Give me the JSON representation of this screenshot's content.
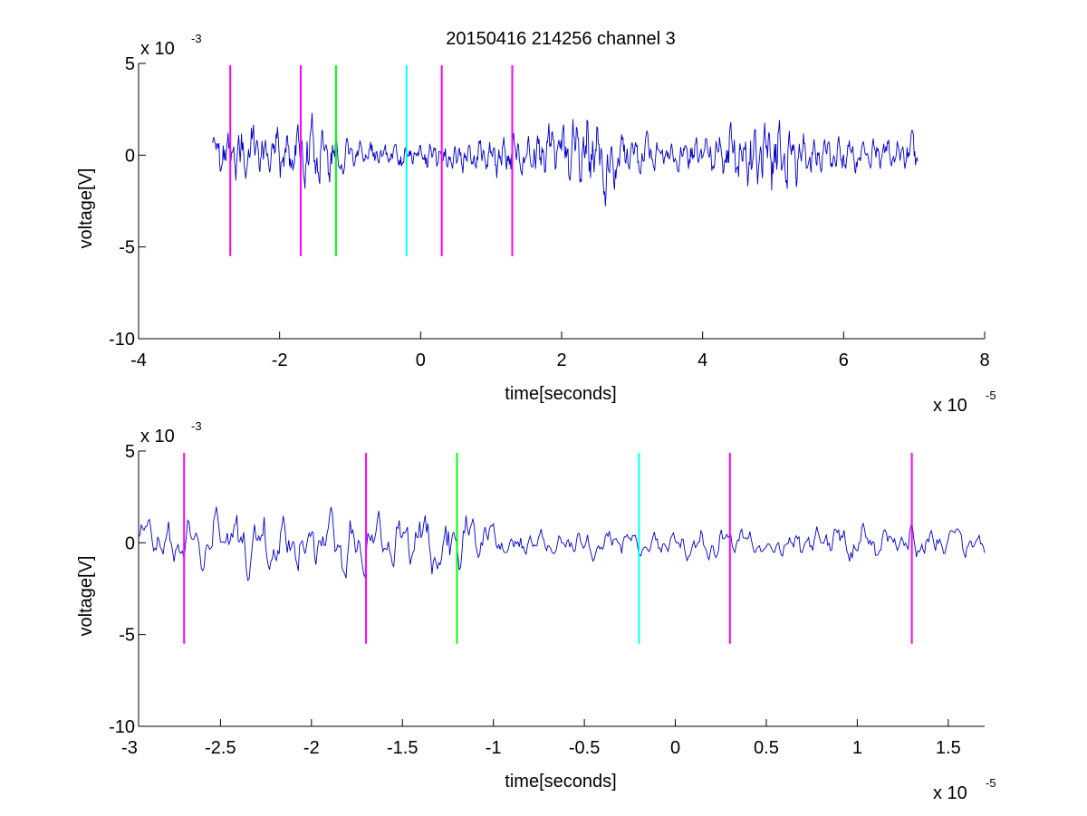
{
  "figure": {
    "title": "20150416 214256 channel 3"
  },
  "chart_data": [
    {
      "type": "line",
      "title": "20150416 214256 channel 3",
      "xlabel": "time[seconds]",
      "ylabel": "voltage[V]",
      "x_exponent_label": "x 10",
      "x_exponent_power": "-5",
      "y_exponent_label": "x 10",
      "y_exponent_power": "-3",
      "xlim": [
        -4,
        8
      ],
      "ylim": [
        -10,
        5
      ],
      "x_ticks": [
        -4,
        -2,
        0,
        2,
        4,
        6,
        8
      ],
      "x_tick_labels": [
        "-4",
        "-2",
        "0",
        "2",
        "4",
        "6",
        "8"
      ],
      "y_ticks": [
        -10,
        -5,
        0,
        5
      ],
      "y_tick_labels": [
        "-10",
        "-5",
        "0",
        "5"
      ],
      "grid": false,
      "series": [
        {
          "color": "#0000cc",
          "x_range": [
            -2.95,
            7.05
          ],
          "envelope": [
            {
              "x": -2.9,
              "amp": 1.5
            },
            {
              "x": -2.5,
              "amp": 2.2
            },
            {
              "x": -2.0,
              "amp": 1.8
            },
            {
              "x": -1.5,
              "amp": 2.4
            },
            {
              "x": -1.0,
              "amp": 1.0
            },
            {
              "x": -0.5,
              "amp": 0.9
            },
            {
              "x": 0.0,
              "amp": 1.0
            },
            {
              "x": 0.5,
              "amp": 1.2
            },
            {
              "x": 1.0,
              "amp": 1.3
            },
            {
              "x": 1.5,
              "amp": 1.6
            },
            {
              "x": 2.0,
              "amp": 2.3
            },
            {
              "x": 2.5,
              "amp": 3.0
            },
            {
              "x": 3.0,
              "amp": 1.4
            },
            {
              "x": 3.5,
              "amp": 1.0
            },
            {
              "x": 4.0,
              "amp": 1.4
            },
            {
              "x": 4.5,
              "amp": 2.0
            },
            {
              "x": 5.0,
              "amp": 3.0
            },
            {
              "x": 5.5,
              "amp": 1.6
            },
            {
              "x": 6.0,
              "amp": 1.2
            },
            {
              "x": 6.5,
              "amp": 1.0
            },
            {
              "x": 7.0,
              "amp": 1.5
            }
          ]
        }
      ],
      "markers": [
        {
          "x": -2.7,
          "y_min": -5.5,
          "y_max": 4.9,
          "color": "#ff00ff"
        },
        {
          "x": -1.7,
          "y_min": -5.5,
          "y_max": 4.9,
          "color": "#ff00ff"
        },
        {
          "x": -1.2,
          "y_min": -5.5,
          "y_max": 4.9,
          "color": "#00ff00"
        },
        {
          "x": -0.2,
          "y_min": -5.5,
          "y_max": 4.9,
          "color": "#00ffff"
        },
        {
          "x": 0.3,
          "y_min": -5.5,
          "y_max": 4.9,
          "color": "#ff00ff"
        },
        {
          "x": 1.3,
          "y_min": -5.5,
          "y_max": 4.9,
          "color": "#ff00ff"
        }
      ]
    },
    {
      "type": "line",
      "xlabel": "time[seconds]",
      "ylabel": "voltage[V]",
      "x_exponent_label": "x 10",
      "x_exponent_power": "-5",
      "y_exponent_label": "x 10",
      "y_exponent_power": "-3",
      "xlim": [
        -2.95,
        1.7
      ],
      "ylim": [
        -10,
        5
      ],
      "x_ticks": [
        -3,
        -2.5,
        -2,
        -1.5,
        -1,
        -0.5,
        0,
        0.5,
        1,
        1.5
      ],
      "x_tick_labels": [
        "-3",
        "-2.5",
        "-2",
        "-1.5",
        "-1",
        "-0.5",
        "0",
        "0.5",
        "1",
        "1.5"
      ],
      "y_ticks": [
        -10,
        -5,
        0,
        5
      ],
      "y_tick_labels": [
        "-10",
        "-5",
        "0",
        "5"
      ],
      "grid": false,
      "series": [
        {
          "color": "#0000cc",
          "x_range": [
            -2.95,
            1.7
          ],
          "envelope": [
            {
              "x": -2.9,
              "amp": 1.5
            },
            {
              "x": -2.6,
              "amp": 2.0
            },
            {
              "x": -2.4,
              "amp": 2.6
            },
            {
              "x": -2.1,
              "amp": 1.8
            },
            {
              "x": -1.8,
              "amp": 2.2
            },
            {
              "x": -1.6,
              "amp": 2.0
            },
            {
              "x": -1.4,
              "amp": 3.0
            },
            {
              "x": -1.2,
              "amp": 2.2
            },
            {
              "x": -1.0,
              "amp": 1.1
            },
            {
              "x": -0.7,
              "amp": 0.9
            },
            {
              "x": -0.4,
              "amp": 0.9
            },
            {
              "x": -0.1,
              "amp": 0.8
            },
            {
              "x": 0.2,
              "amp": 1.2
            },
            {
              "x": 0.5,
              "amp": 1.0
            },
            {
              "x": 0.8,
              "amp": 1.2
            },
            {
              "x": 1.1,
              "amp": 1.3
            },
            {
              "x": 1.4,
              "amp": 1.2
            },
            {
              "x": 1.7,
              "amp": 0.8
            }
          ]
        }
      ],
      "markers": [
        {
          "x": -2.7,
          "y_min": -5.5,
          "y_max": 4.9,
          "color": "#ff00ff"
        },
        {
          "x": -1.7,
          "y_min": -5.5,
          "y_max": 4.9,
          "color": "#ff00ff"
        },
        {
          "x": -1.2,
          "y_min": -5.5,
          "y_max": 4.9,
          "color": "#00ff00"
        },
        {
          "x": -0.2,
          "y_min": -5.5,
          "y_max": 4.9,
          "color": "#00ffff"
        },
        {
          "x": 0.3,
          "y_min": -5.5,
          "y_max": 4.9,
          "color": "#ff00ff"
        },
        {
          "x": 1.3,
          "y_min": -5.5,
          "y_max": 4.9,
          "color": "#ff00ff"
        }
      ]
    }
  ]
}
